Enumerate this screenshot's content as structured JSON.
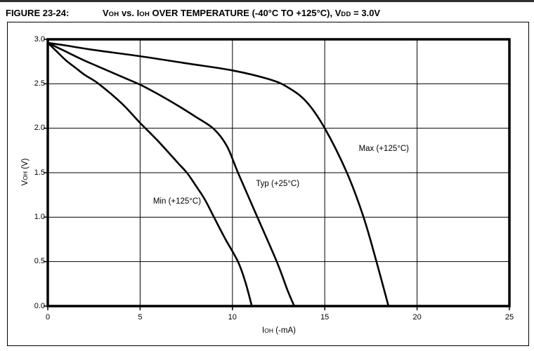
{
  "header": {
    "figure_label": "FIGURE 23-24:",
    "title_parts": [
      "V",
      "OH",
      " vs. I",
      "OH",
      " OVER TEMPERATURE (-40°C TO +125°C), V",
      "DD",
      " = 3.0V"
    ]
  },
  "chart_data": {
    "type": "line",
    "title": "VOH vs. IOH OVER TEMPERATURE (-40°C TO +125°C), VDD = 3.0V",
    "xlabel": "IOH (-mA)",
    "ylabel": "VOH (V)",
    "xlabel_parts": [
      "I",
      "OH",
      " (-mA)"
    ],
    "ylabel_parts": [
      "V",
      "OH",
      " (V)"
    ],
    "xlim": [
      0,
      25
    ],
    "ylim": [
      0,
      3.0
    ],
    "x_ticks": [
      "0",
      "5",
      "10",
      "15",
      "20",
      "25"
    ],
    "x_tick_values": [
      0,
      5,
      10,
      15,
      20,
      25
    ],
    "y_ticks": [
      "0.0",
      "0.5",
      "1.0",
      "1.5",
      "2.0",
      "2.5",
      "3.0"
    ],
    "y_tick_values": [
      0,
      0.5,
      1.0,
      1.5,
      2.0,
      2.5,
      3.0
    ],
    "grid": true,
    "legend_position": "inline-annotations",
    "line_color": "#000000",
    "background": "#ffffff",
    "series": [
      {
        "name": "Max (+125°C)",
        "label_anchor": {
          "x": 18.2,
          "y": 1.77
        },
        "points": [
          [
            0,
            2.96
          ],
          [
            1,
            2.93
          ],
          [
            2.5,
            2.88
          ],
          [
            5,
            2.81
          ],
          [
            7.5,
            2.73
          ],
          [
            10,
            2.65
          ],
          [
            12,
            2.55
          ],
          [
            13,
            2.46
          ],
          [
            14,
            2.3
          ],
          [
            15,
            2.0
          ],
          [
            16.2,
            1.5
          ],
          [
            17.1,
            1.0
          ],
          [
            17.8,
            0.5
          ],
          [
            18.45,
            0
          ]
        ]
      },
      {
        "name": "Typ (+25°C)",
        "label_anchor": {
          "x": 12.45,
          "y": 1.37
        },
        "points": [
          [
            0,
            2.96
          ],
          [
            1,
            2.86
          ],
          [
            2,
            2.76
          ],
          [
            3,
            2.67
          ],
          [
            4,
            2.58
          ],
          [
            5,
            2.49
          ],
          [
            6,
            2.38
          ],
          [
            7,
            2.26
          ],
          [
            8,
            2.13
          ],
          [
            9,
            1.99
          ],
          [
            9.7,
            1.8
          ],
          [
            10.3,
            1.5
          ],
          [
            11.35,
            1.0
          ],
          [
            12.4,
            0.5
          ],
          [
            13,
            0.17
          ],
          [
            13.35,
            0
          ]
        ]
      },
      {
        "name": "Min (+125°C)",
        "label_anchor": {
          "x": 7.0,
          "y": 1.18
        },
        "points": [
          [
            0,
            2.96
          ],
          [
            0.5,
            2.86
          ],
          [
            1,
            2.76
          ],
          [
            1.5,
            2.68
          ],
          [
            2,
            2.6
          ],
          [
            2.75,
            2.5
          ],
          [
            4,
            2.28
          ],
          [
            5,
            2.06
          ],
          [
            6,
            1.85
          ],
          [
            7,
            1.62
          ],
          [
            7.53,
            1.5
          ],
          [
            8,
            1.36
          ],
          [
            8.5,
            1.2
          ],
          [
            9,
            1.0
          ],
          [
            9.6,
            0.76
          ],
          [
            10.3,
            0.5
          ],
          [
            10.7,
            0.27
          ],
          [
            11.05,
            0
          ]
        ]
      }
    ]
  }
}
